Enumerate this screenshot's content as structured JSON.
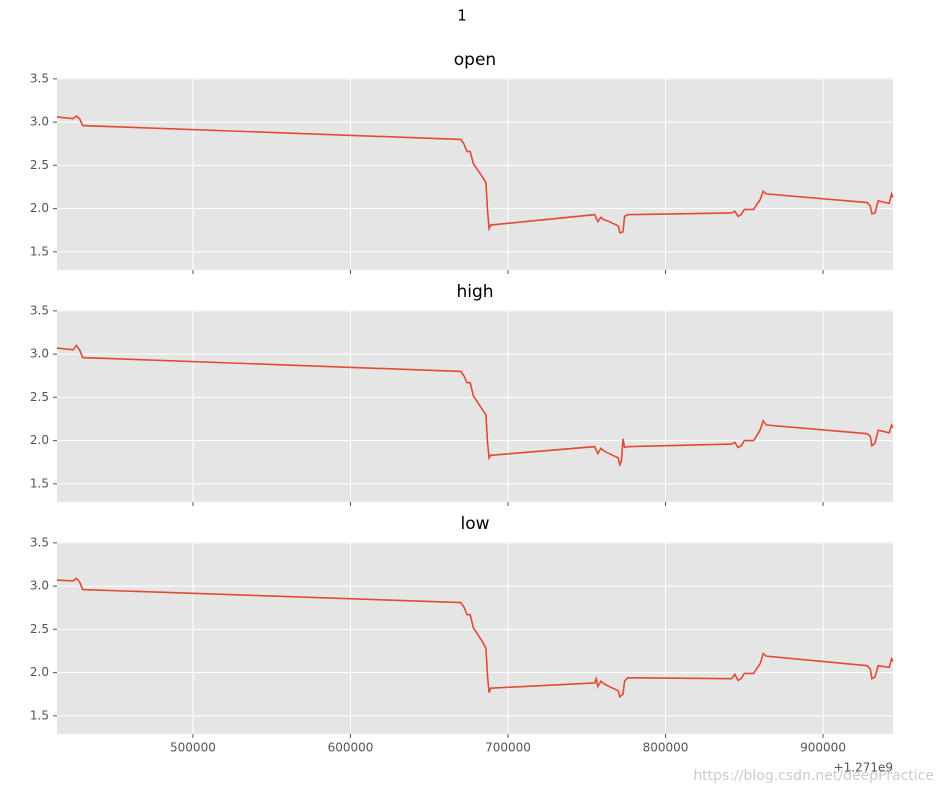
{
  "title": "1",
  "watermark": "https://blog.csdn.net/deepPractice",
  "chart_data": [
    {
      "type": "line",
      "title": "open",
      "color": "#e24a33",
      "grid": true,
      "xlim": [
        413700,
        944400
      ],
      "xticks": [
        500000,
        600000,
        700000,
        800000,
        900000
      ],
      "ylim": [
        1.29,
        3.51
      ],
      "yticks": [
        1.5,
        {
          "value": 2,
          "label": "2.0"
        },
        2.5,
        {
          "value": 3,
          "label": "3.0"
        },
        3.5
      ],
      "x": [
        413700,
        424000,
        426000,
        428000,
        430000,
        670000,
        672000,
        674000,
        676000,
        678000,
        684000,
        686000,
        687000,
        688000,
        689000,
        755000,
        757000,
        759000,
        761000,
        763000,
        770000,
        771000,
        773000,
        774000,
        776000,
        842000,
        844000,
        846000,
        848000,
        850000,
        856000,
        858000,
        860000,
        862000,
        864000,
        928000,
        930000,
        931000,
        933000,
        935000,
        942000,
        943500,
        944400
      ],
      "values": [
        3.06,
        3.04,
        3.07,
        3.04,
        2.96,
        2.8,
        2.75,
        2.66,
        2.66,
        2.52,
        2.36,
        2.3,
        1.98,
        1.77,
        1.81,
        1.93,
        1.85,
        1.9,
        1.87,
        1.86,
        1.8,
        1.72,
        1.73,
        1.91,
        1.93,
        1.95,
        1.97,
        1.91,
        1.93,
        1.99,
        1.99,
        2.05,
        2.1,
        2.2,
        2.17,
        2.07,
        2.03,
        1.94,
        1.95,
        2.09,
        2.06,
        2.17,
        2.13
      ]
    },
    {
      "type": "line",
      "title": "high",
      "color": "#e24a33",
      "grid": true,
      "xlim": [
        413700,
        944400
      ],
      "xticks": [
        500000,
        600000,
        700000,
        800000,
        900000
      ],
      "ylim": [
        1.29,
        3.51
      ],
      "yticks": [
        1.5,
        {
          "value": 2,
          "label": "2.0"
        },
        2.5,
        {
          "value": 3,
          "label": "3.0"
        },
        3.5
      ],
      "x": [
        413700,
        424000,
        426000,
        428000,
        430000,
        670000,
        672000,
        674000,
        676000,
        678000,
        684000,
        686000,
        687000,
        688000,
        689000,
        755000,
        757000,
        759000,
        761000,
        763000,
        770000,
        771000,
        772000,
        773000,
        774000,
        776000,
        842000,
        844000,
        846000,
        848000,
        850000,
        856000,
        858000,
        860000,
        862000,
        864000,
        928000,
        930000,
        931000,
        933000,
        935000,
        942000,
        943500,
        944400
      ],
      "values": [
        3.07,
        3.05,
        3.1,
        3.05,
        2.96,
        2.8,
        2.75,
        2.67,
        2.67,
        2.52,
        2.35,
        2.3,
        1.98,
        1.8,
        1.83,
        1.93,
        1.85,
        1.91,
        1.88,
        1.86,
        1.8,
        1.72,
        1.76,
        2.02,
        1.92,
        1.93,
        1.96,
        1.98,
        1.92,
        1.94,
        2.0,
        2.0,
        2.06,
        2.12,
        2.23,
        2.18,
        2.08,
        2.05,
        1.94,
        1.97,
        2.12,
        2.09,
        2.18,
        2.15
      ]
    },
    {
      "type": "line",
      "title": "low",
      "color": "#e24a33",
      "grid": true,
      "xlim": [
        413700,
        944400
      ],
      "xticks": [
        500000,
        600000,
        700000,
        800000,
        900000
      ],
      "x_offset_label": "+1.271e9",
      "ylim": [
        1.29,
        3.51
      ],
      "yticks": [
        1.5,
        {
          "value": 2,
          "label": "2.0"
        },
        2.5,
        {
          "value": 3,
          "label": "3.0"
        },
        3.5
      ],
      "x": [
        413700,
        424000,
        426000,
        428000,
        430000,
        670000,
        672000,
        674000,
        676000,
        678000,
        684000,
        686000,
        687000,
        688000,
        689000,
        755000,
        756000,
        757000,
        759000,
        761000,
        763000,
        770000,
        771000,
        773000,
        774000,
        776000,
        842000,
        844000,
        846000,
        848000,
        850000,
        856000,
        858000,
        860000,
        862000,
        864000,
        928000,
        930000,
        931000,
        933000,
        935000,
        942000,
        943500,
        944400
      ],
      "values": [
        3.07,
        3.06,
        3.09,
        3.05,
        2.96,
        2.81,
        2.76,
        2.67,
        2.67,
        2.52,
        2.35,
        2.28,
        1.96,
        1.77,
        1.82,
        1.88,
        1.93,
        1.84,
        1.9,
        1.87,
        1.85,
        1.79,
        1.72,
        1.75,
        1.9,
        1.94,
        1.93,
        1.98,
        1.91,
        1.93,
        1.99,
        1.99,
        2.05,
        2.1,
        2.22,
        2.19,
        2.08,
        2.04,
        1.93,
        1.95,
        2.08,
        2.06,
        2.16,
        2.13
      ]
    }
  ]
}
